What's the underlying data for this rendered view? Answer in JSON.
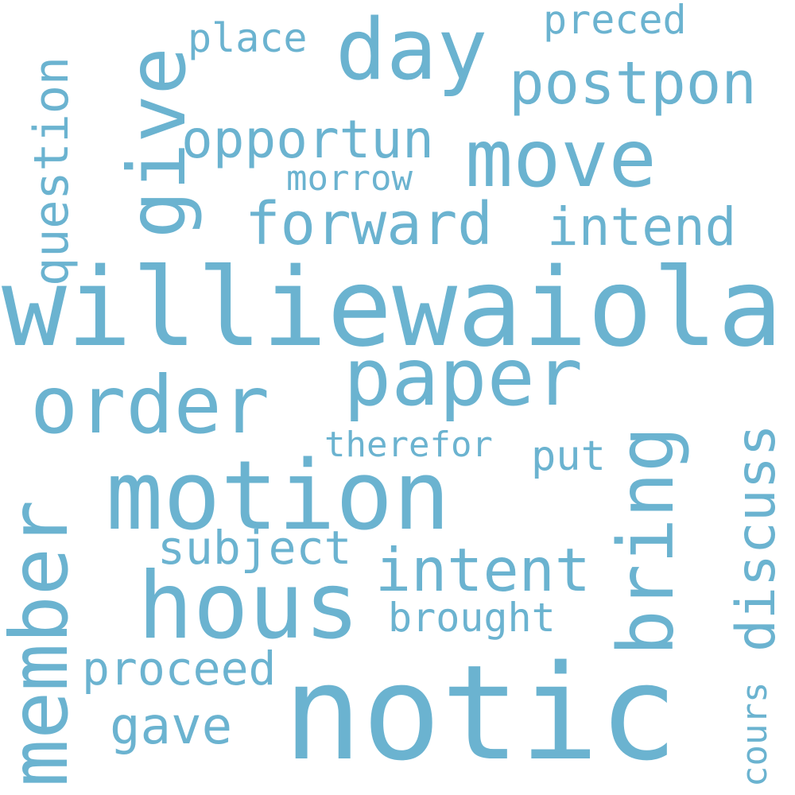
{
  "accent_color": "#6bb3d0",
  "background": "#ffffff",
  "words": [
    {
      "text": "notic"
    },
    {
      "text": "williewaiola"
    },
    {
      "text": "motion"
    },
    {
      "text": "hous"
    },
    {
      "text": "paper"
    },
    {
      "text": "order"
    },
    {
      "text": "day"
    },
    {
      "text": "move"
    },
    {
      "text": "member"
    },
    {
      "text": "bring"
    },
    {
      "text": "give"
    },
    {
      "text": "intent"
    },
    {
      "text": "forward"
    },
    {
      "text": "postpon"
    },
    {
      "text": "discuss"
    },
    {
      "text": "question"
    },
    {
      "text": "opportun"
    },
    {
      "text": "intend"
    },
    {
      "text": "gave"
    },
    {
      "text": "subject"
    },
    {
      "text": "proceed"
    },
    {
      "text": "brought"
    },
    {
      "text": "place"
    },
    {
      "text": "preced"
    },
    {
      "text": "morrow"
    },
    {
      "text": "put"
    },
    {
      "text": "therefor"
    },
    {
      "text": "cours"
    }
  ]
}
